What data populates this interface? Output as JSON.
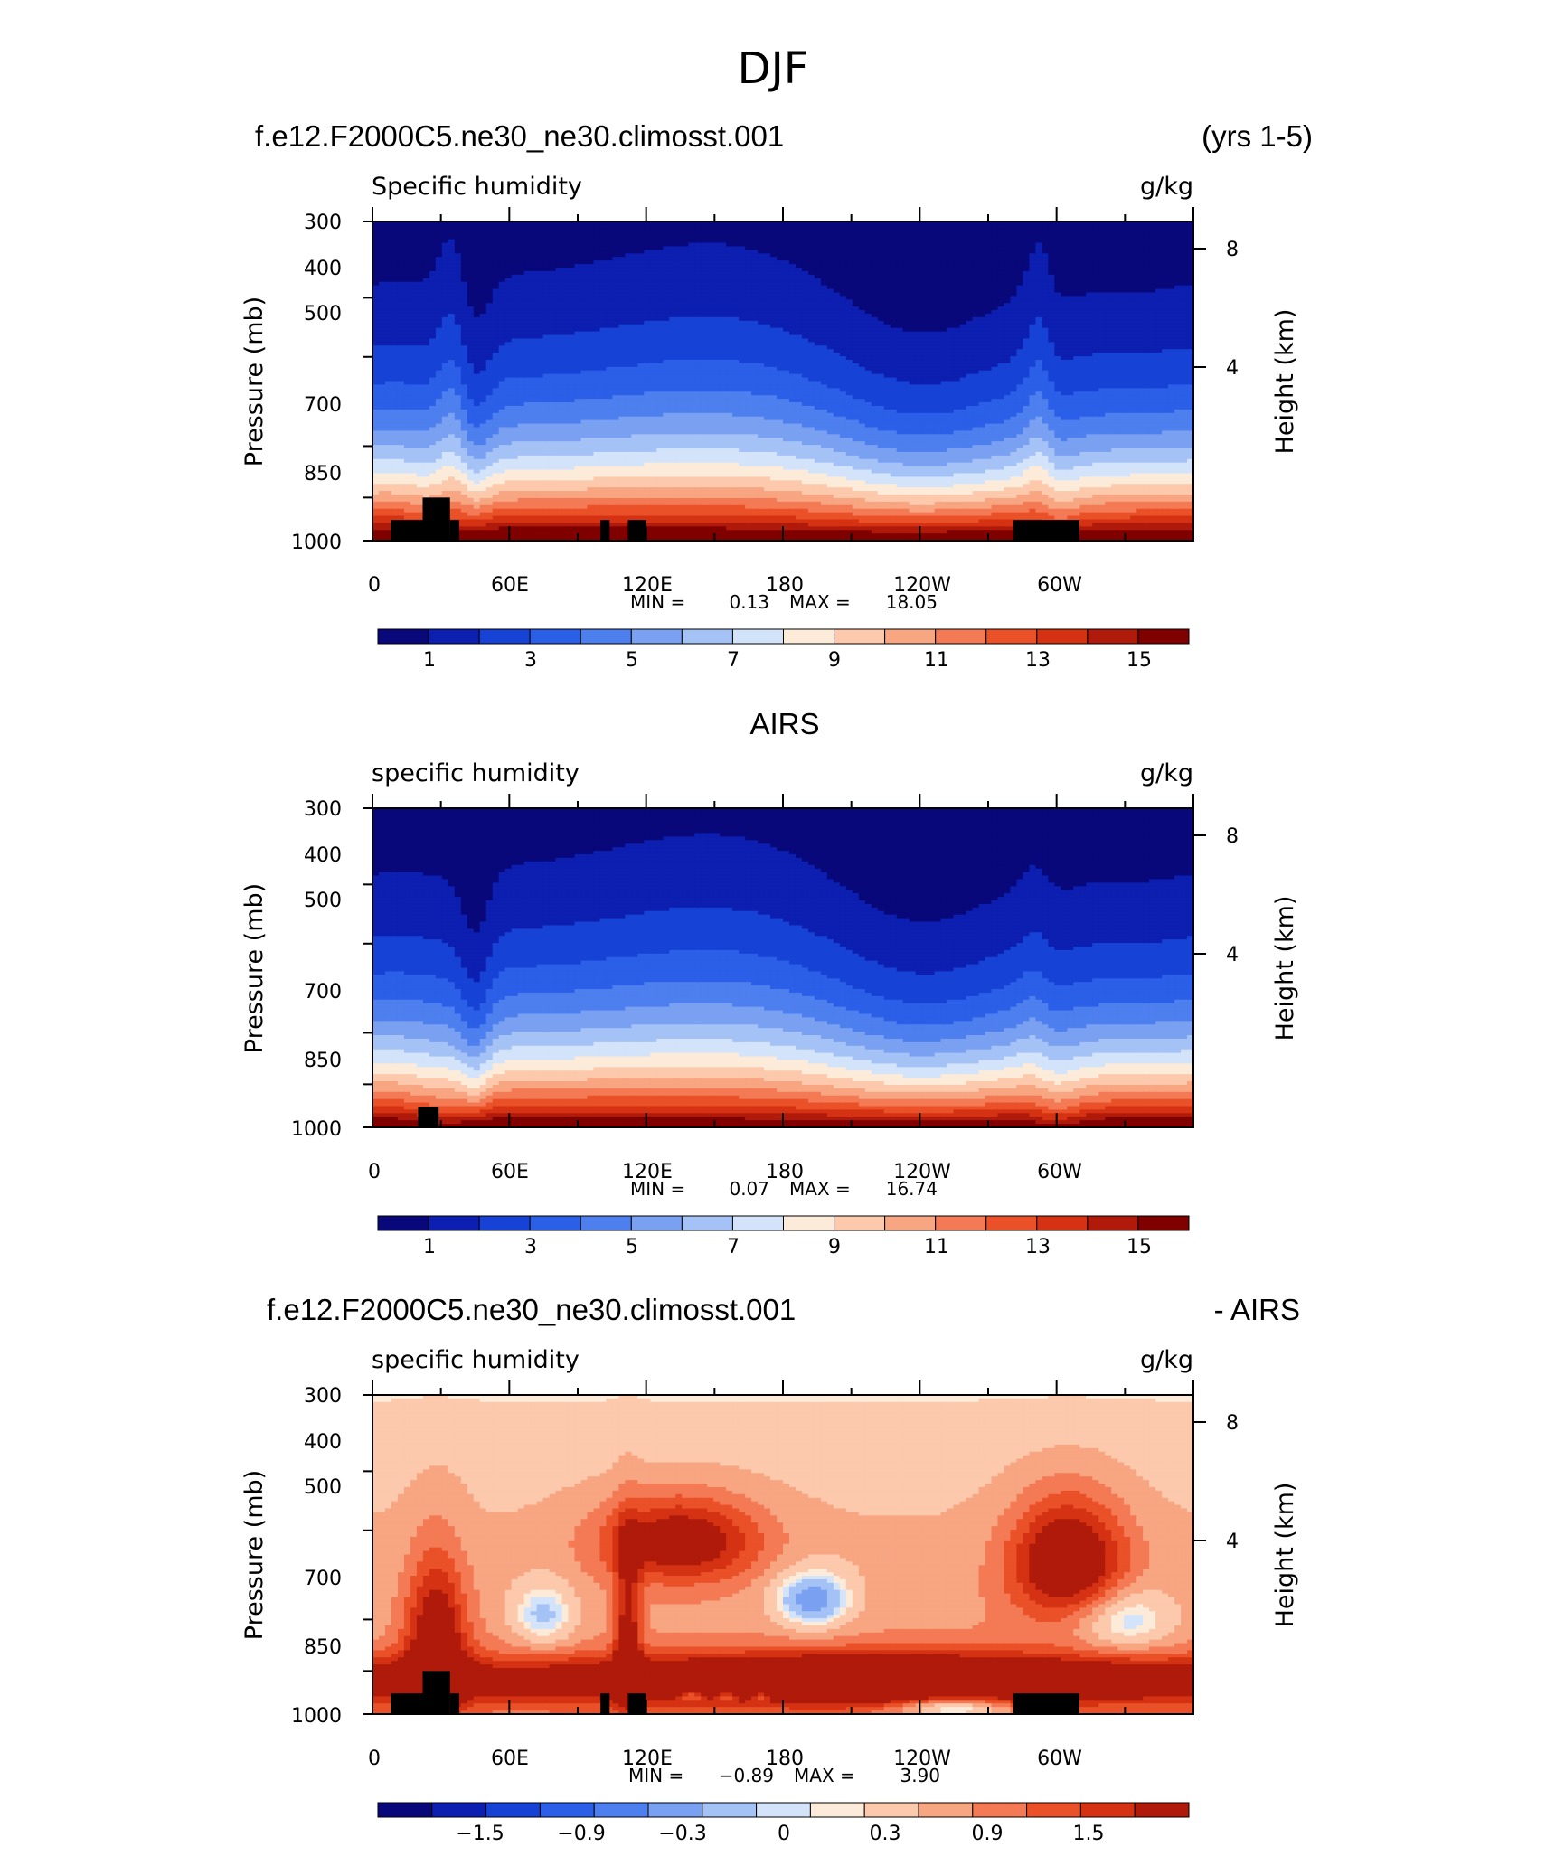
{
  "title": "DJF",
  "chart_data": [
    {
      "type": "heatmap",
      "title_left": "f.e12.F2000C5.ne30_ne30.climosst.001",
      "title_right": "(yrs 1-5)",
      "variable": "Specific humidity",
      "units": "g/kg",
      "ylabel": "Pressure (mb)",
      "ylabel_right": "Height (km)",
      "y_ticks": [
        "300",
        "400",
        "500",
        "700",
        "850",
        "1000"
      ],
      "y_right_ticks": [
        "8",
        "4"
      ],
      "x_ticks": [
        "0",
        "60E",
        "120E",
        "180",
        "120W",
        "60W"
      ],
      "min_label": "MIN =",
      "min_value": "0.13",
      "max_label": "MAX =",
      "max_value": "18.05",
      "colorbar_labels": [
        "1",
        "3",
        "5",
        "7",
        "9",
        "11",
        "13",
        "15"
      ],
      "colorbar_levels": [
        0,
        1,
        2,
        3,
        4,
        5,
        6,
        7,
        8,
        9,
        10,
        11,
        12,
        13,
        14,
        15,
        16
      ],
      "xlim": [
        0,
        360
      ],
      "ylim": [
        300,
        1000
      ],
      "field": "model"
    },
    {
      "type": "heatmap",
      "title_center": "AIRS",
      "variable": "specific humidity",
      "units": "g/kg",
      "ylabel": "Pressure (mb)",
      "ylabel_right": "Height (km)",
      "y_ticks": [
        "300",
        "400",
        "500",
        "700",
        "850",
        "1000"
      ],
      "y_right_ticks": [
        "8",
        "4"
      ],
      "x_ticks": [
        "0",
        "60E",
        "120E",
        "180",
        "120W",
        "60W"
      ],
      "min_label": "MIN =",
      "min_value": "0.07",
      "max_label": "MAX =",
      "max_value": "16.74",
      "colorbar_labels": [
        "1",
        "3",
        "5",
        "7",
        "9",
        "11",
        "13",
        "15"
      ],
      "colorbar_levels": [
        0,
        1,
        2,
        3,
        4,
        5,
        6,
        7,
        8,
        9,
        10,
        11,
        12,
        13,
        14,
        15,
        16
      ],
      "xlim": [
        0,
        360
      ],
      "ylim": [
        300,
        1000
      ],
      "field": "obs"
    },
    {
      "type": "heatmap",
      "title_left": "f.e12.F2000C5.ne30_ne30.climosst.001",
      "title_right": "- AIRS",
      "variable": "specific humidity",
      "units": "g/kg",
      "ylabel": "Pressure (mb)",
      "ylabel_right": "Height (km)",
      "y_ticks": [
        "300",
        "400",
        "500",
        "700",
        "850",
        "1000"
      ],
      "y_right_ticks": [
        "8",
        "4"
      ],
      "x_ticks": [
        "0",
        "60E",
        "120E",
        "180",
        "120W",
        "60W"
      ],
      "min_label": "MIN =",
      "min_value": "−0.89",
      "max_label": "MAX =",
      "max_value": "3.90",
      "colorbar_labels": [
        "−1.5",
        "−0.9",
        "−0.3",
        "0",
        "0.3",
        "0.9",
        "1.5"
      ],
      "colorbar_levels": [
        -2.1,
        -1.8,
        -1.5,
        -1.2,
        -0.9,
        -0.6,
        -0.3,
        0,
        0.15,
        0.3,
        0.6,
        0.9,
        1.2,
        1.5,
        1.8,
        2.1
      ],
      "xlim": [
        0,
        360
      ],
      "ylim": [
        300,
        1000
      ],
      "field": "diff"
    }
  ],
  "colormap": [
    "#08087a",
    "#0c1fb0",
    "#1742d6",
    "#2b5fe8",
    "#4e7fee",
    "#7aa0f2",
    "#a5c2f6",
    "#d3e3fa",
    "#fdebd9",
    "#fcc9ad",
    "#f8a582",
    "#f47a55",
    "#ea5128",
    "#d43212",
    "#b01a0a",
    "#800000"
  ]
}
